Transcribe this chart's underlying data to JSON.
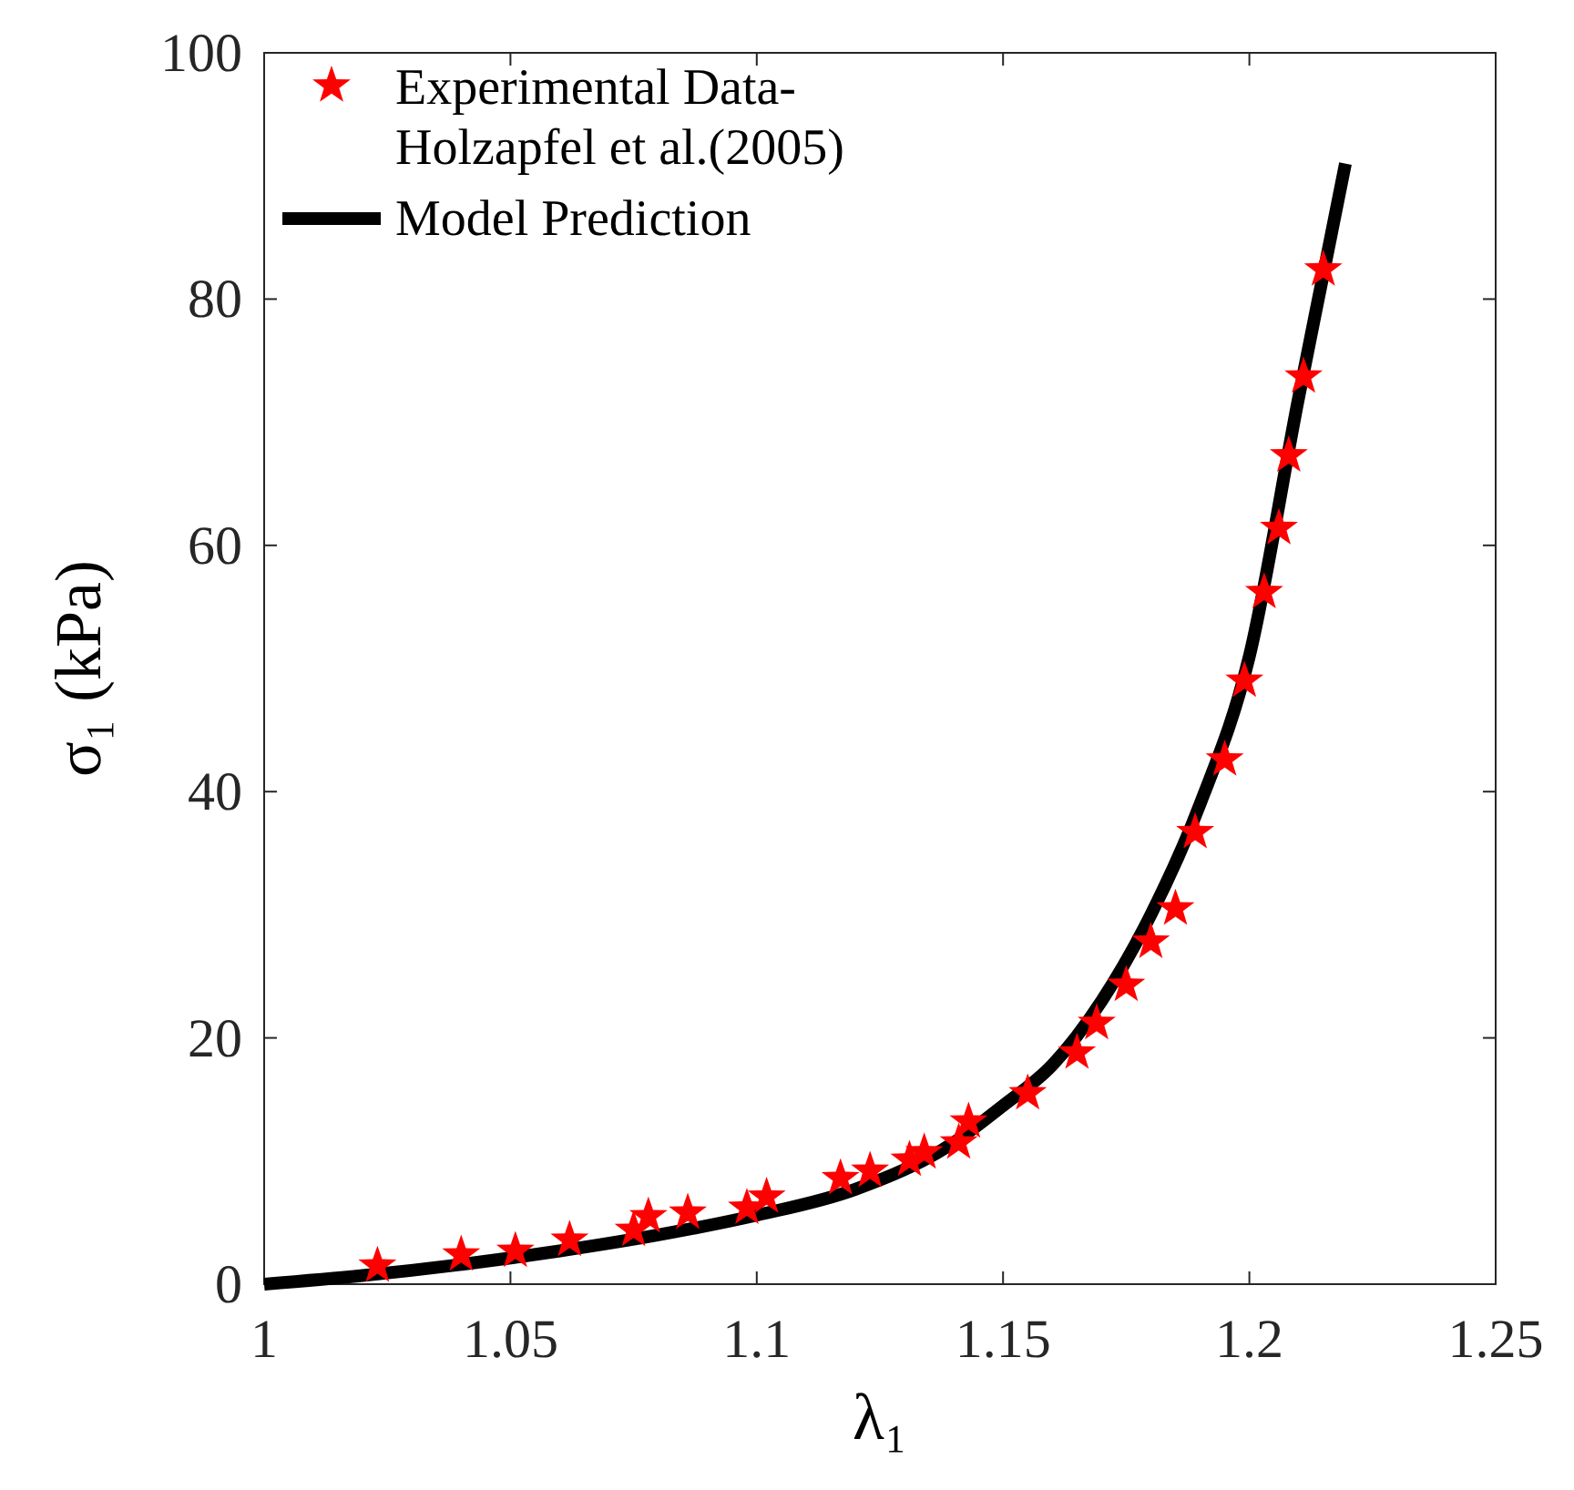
{
  "chart_data": {
    "type": "scatter",
    "xlabel": "λ₁",
    "ylabel": "σ₁ (kPa)",
    "xlim": [
      1,
      1.25
    ],
    "xticks": [
      1,
      1.05,
      1.1,
      1.15,
      1.2,
      1.25
    ],
    "ylim": [
      0,
      100
    ],
    "yticks": [
      0,
      20,
      40,
      60,
      80,
      100
    ],
    "grid": false,
    "legend": "top left",
    "series": [
      {
        "name": "Experimental Data-\nHolzapfel et al.(2005)",
        "marker": "star",
        "color": "#ff0000",
        "x": [
          1.023,
          1.04,
          1.051,
          1.062,
          1.075,
          1.078,
          1.086,
          1.098,
          1.102,
          1.117,
          1.123,
          1.131,
          1.134,
          1.141,
          1.143,
          1.155,
          1.165,
          1.169,
          1.175,
          1.18,
          1.185,
          1.189,
          1.195,
          1.199,
          1.203,
          1.206,
          1.208,
          1.211,
          1.215
        ],
        "values": [
          1.5,
          2.4,
          2.7,
          3.6,
          4.4,
          5.5,
          5.8,
          6.2,
          7.1,
          8.6,
          9.2,
          10.1,
          10.7,
          11.5,
          13.2,
          15.5,
          18.8,
          21.2,
          24.3,
          27.8,
          30.5,
          36.7,
          42.6,
          49,
          56.2,
          61.4,
          67.3,
          73.7,
          82.4
        ]
      },
      {
        "name": "Model Prediction",
        "type": "line",
        "marker": "none",
        "line_style": "solid",
        "color": "#000000",
        "x": [
          1,
          1.02,
          1.04,
          1.06,
          1.08,
          1.1,
          1.12,
          1.14,
          1.15,
          1.16,
          1.17,
          1.18,
          1.19,
          1.2,
          1.21,
          1.215,
          1.2195
        ],
        "values": [
          0,
          0.7,
          1.6,
          2.7,
          4,
          5.6,
          7.7,
          11.5,
          14.5,
          17.8,
          23,
          30,
          39,
          51,
          72,
          82,
          91
        ]
      }
    ]
  }
}
